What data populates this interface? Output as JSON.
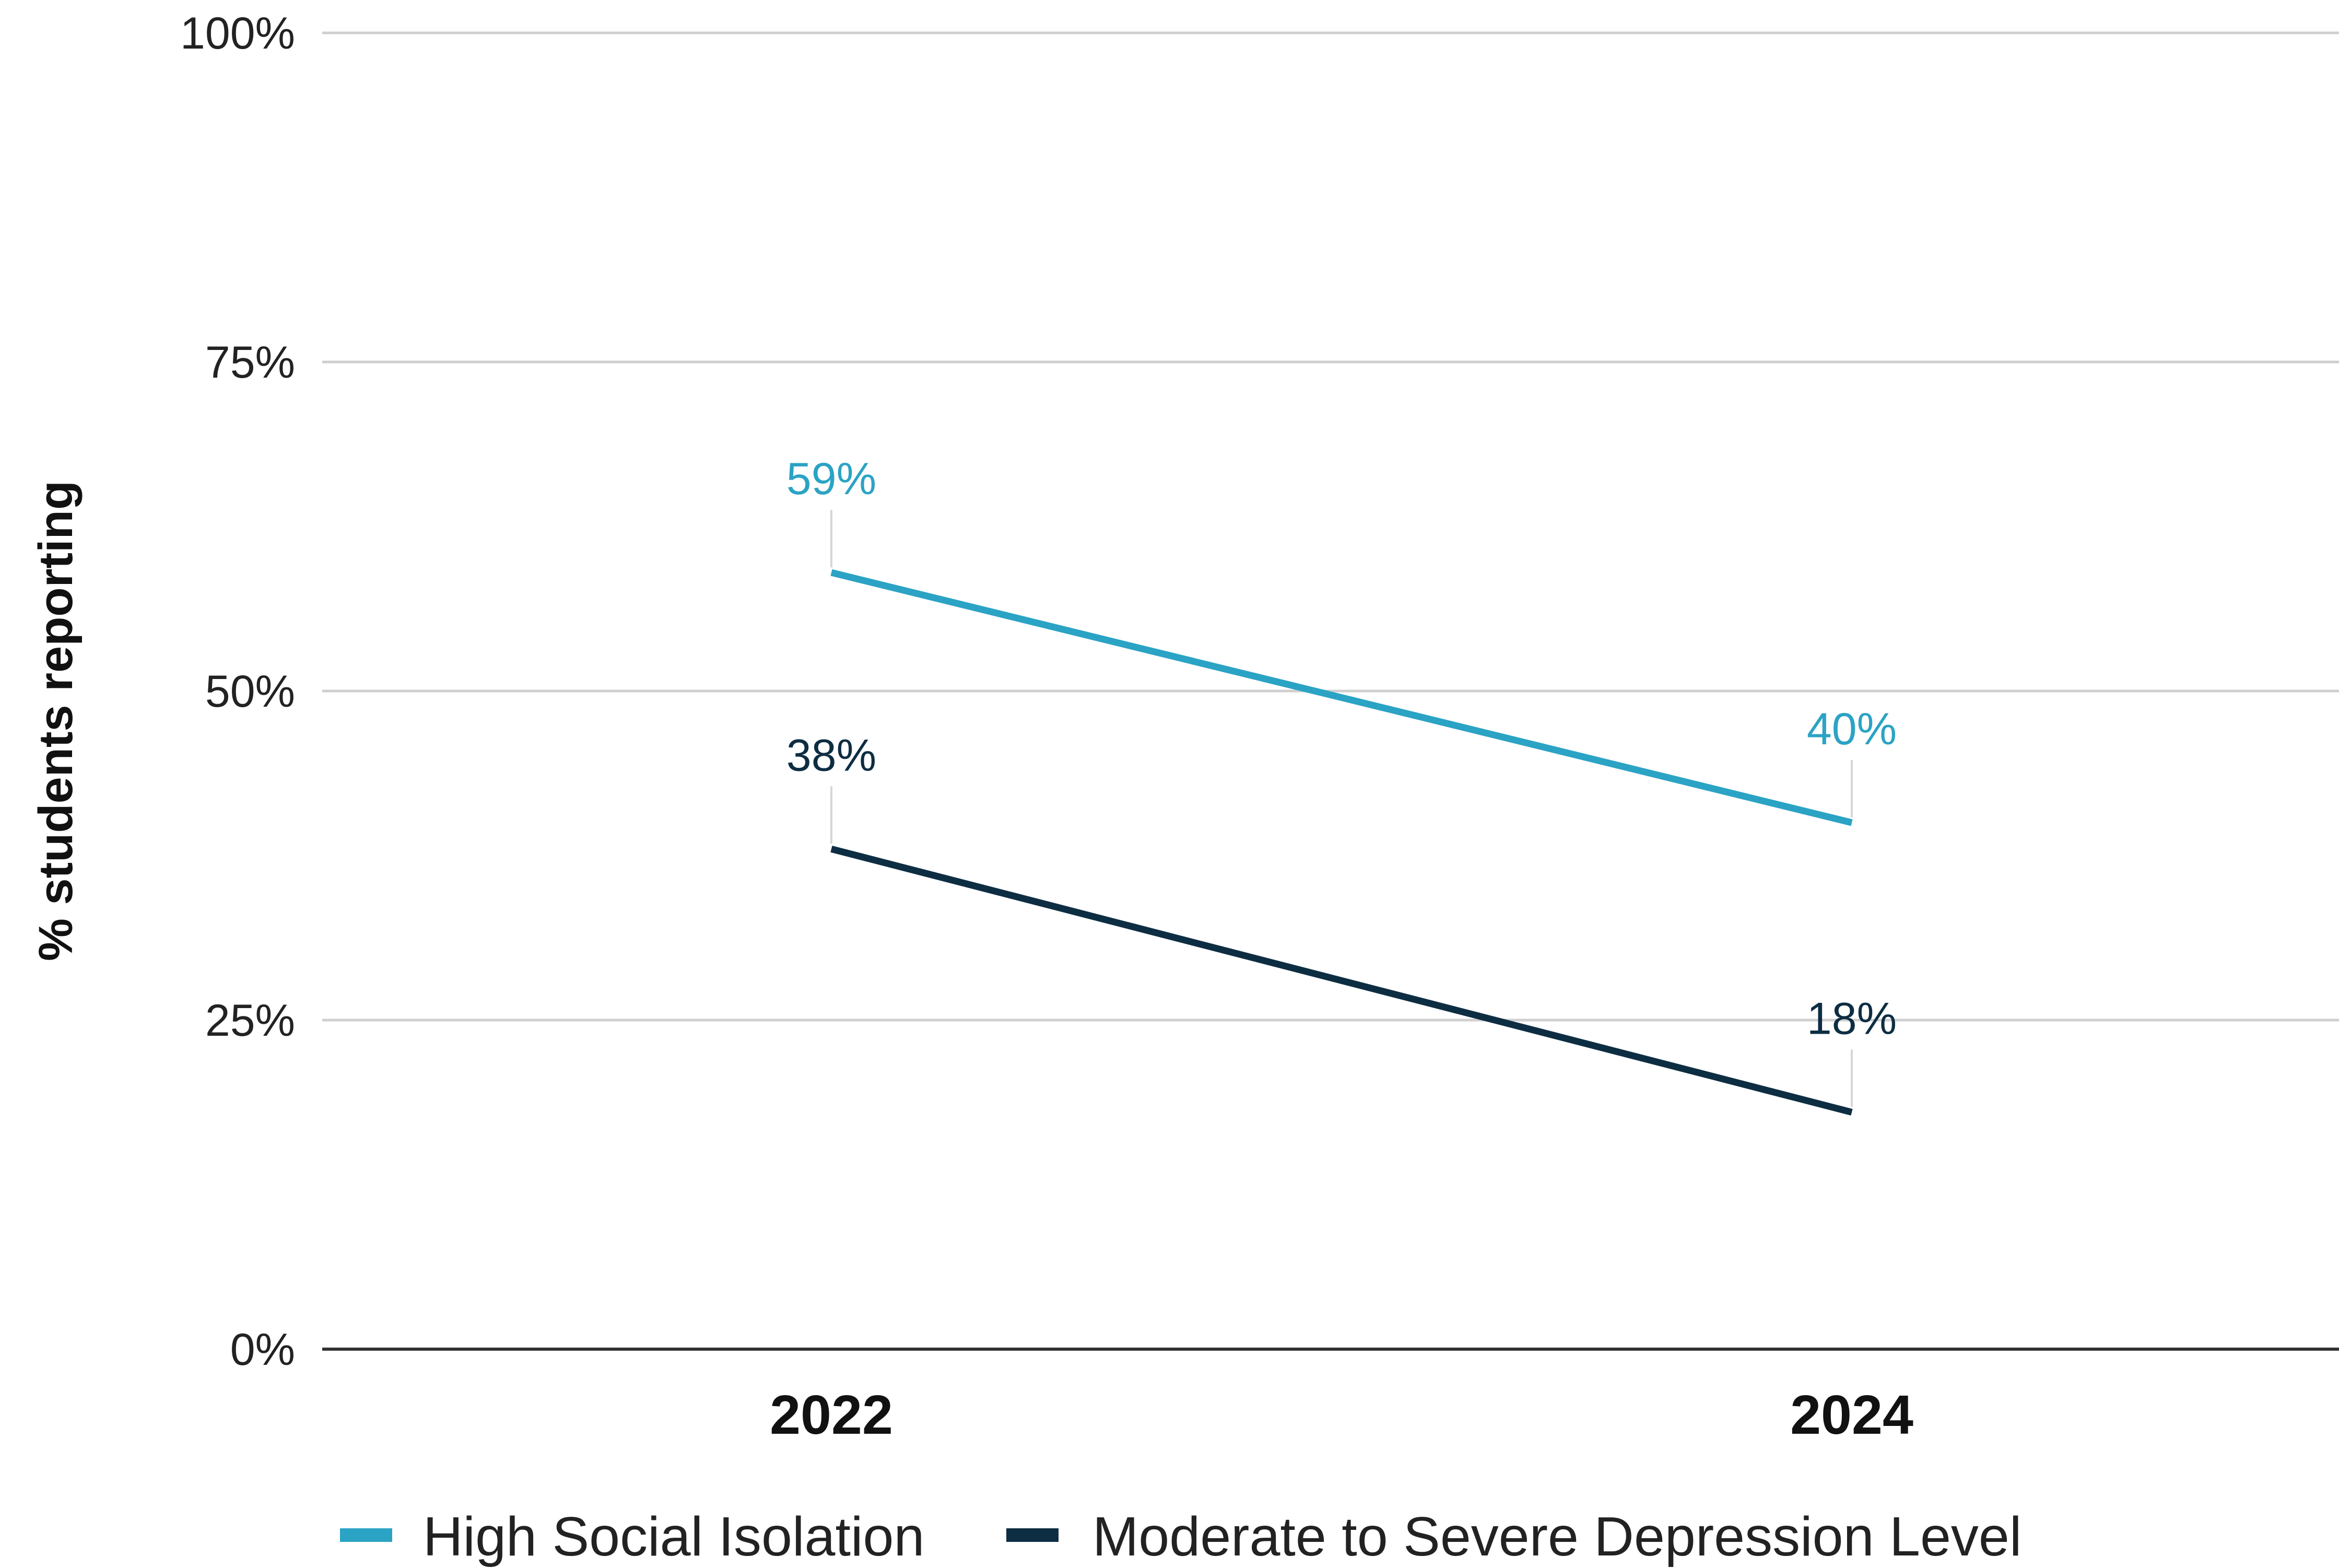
{
  "chart_data": {
    "type": "line",
    "title": "",
    "xlabel": "",
    "ylabel": "% students reporting",
    "categories": [
      "2022",
      "2024"
    ],
    "ylim": [
      0,
      100
    ],
    "y_ticks": [
      {
        "value": 0,
        "label": "0%"
      },
      {
        "value": 25,
        "label": "25%"
      },
      {
        "value": 50,
        "label": "50%"
      },
      {
        "value": 75,
        "label": "75%"
      },
      {
        "value": 100,
        "label": "100%"
      }
    ],
    "grid": true,
    "legend_position": "bottom-left",
    "series": [
      {
        "name": "High Social Isolation",
        "color": "#2ba3c4",
        "values": [
          59,
          40
        ],
        "labels": [
          "59%",
          "40%"
        ]
      },
      {
        "name": "Moderate to Severe Depression Level",
        "color": "#0d2d42",
        "values": [
          38,
          18
        ],
        "labels": [
          "38%",
          "18%"
        ]
      }
    ]
  }
}
